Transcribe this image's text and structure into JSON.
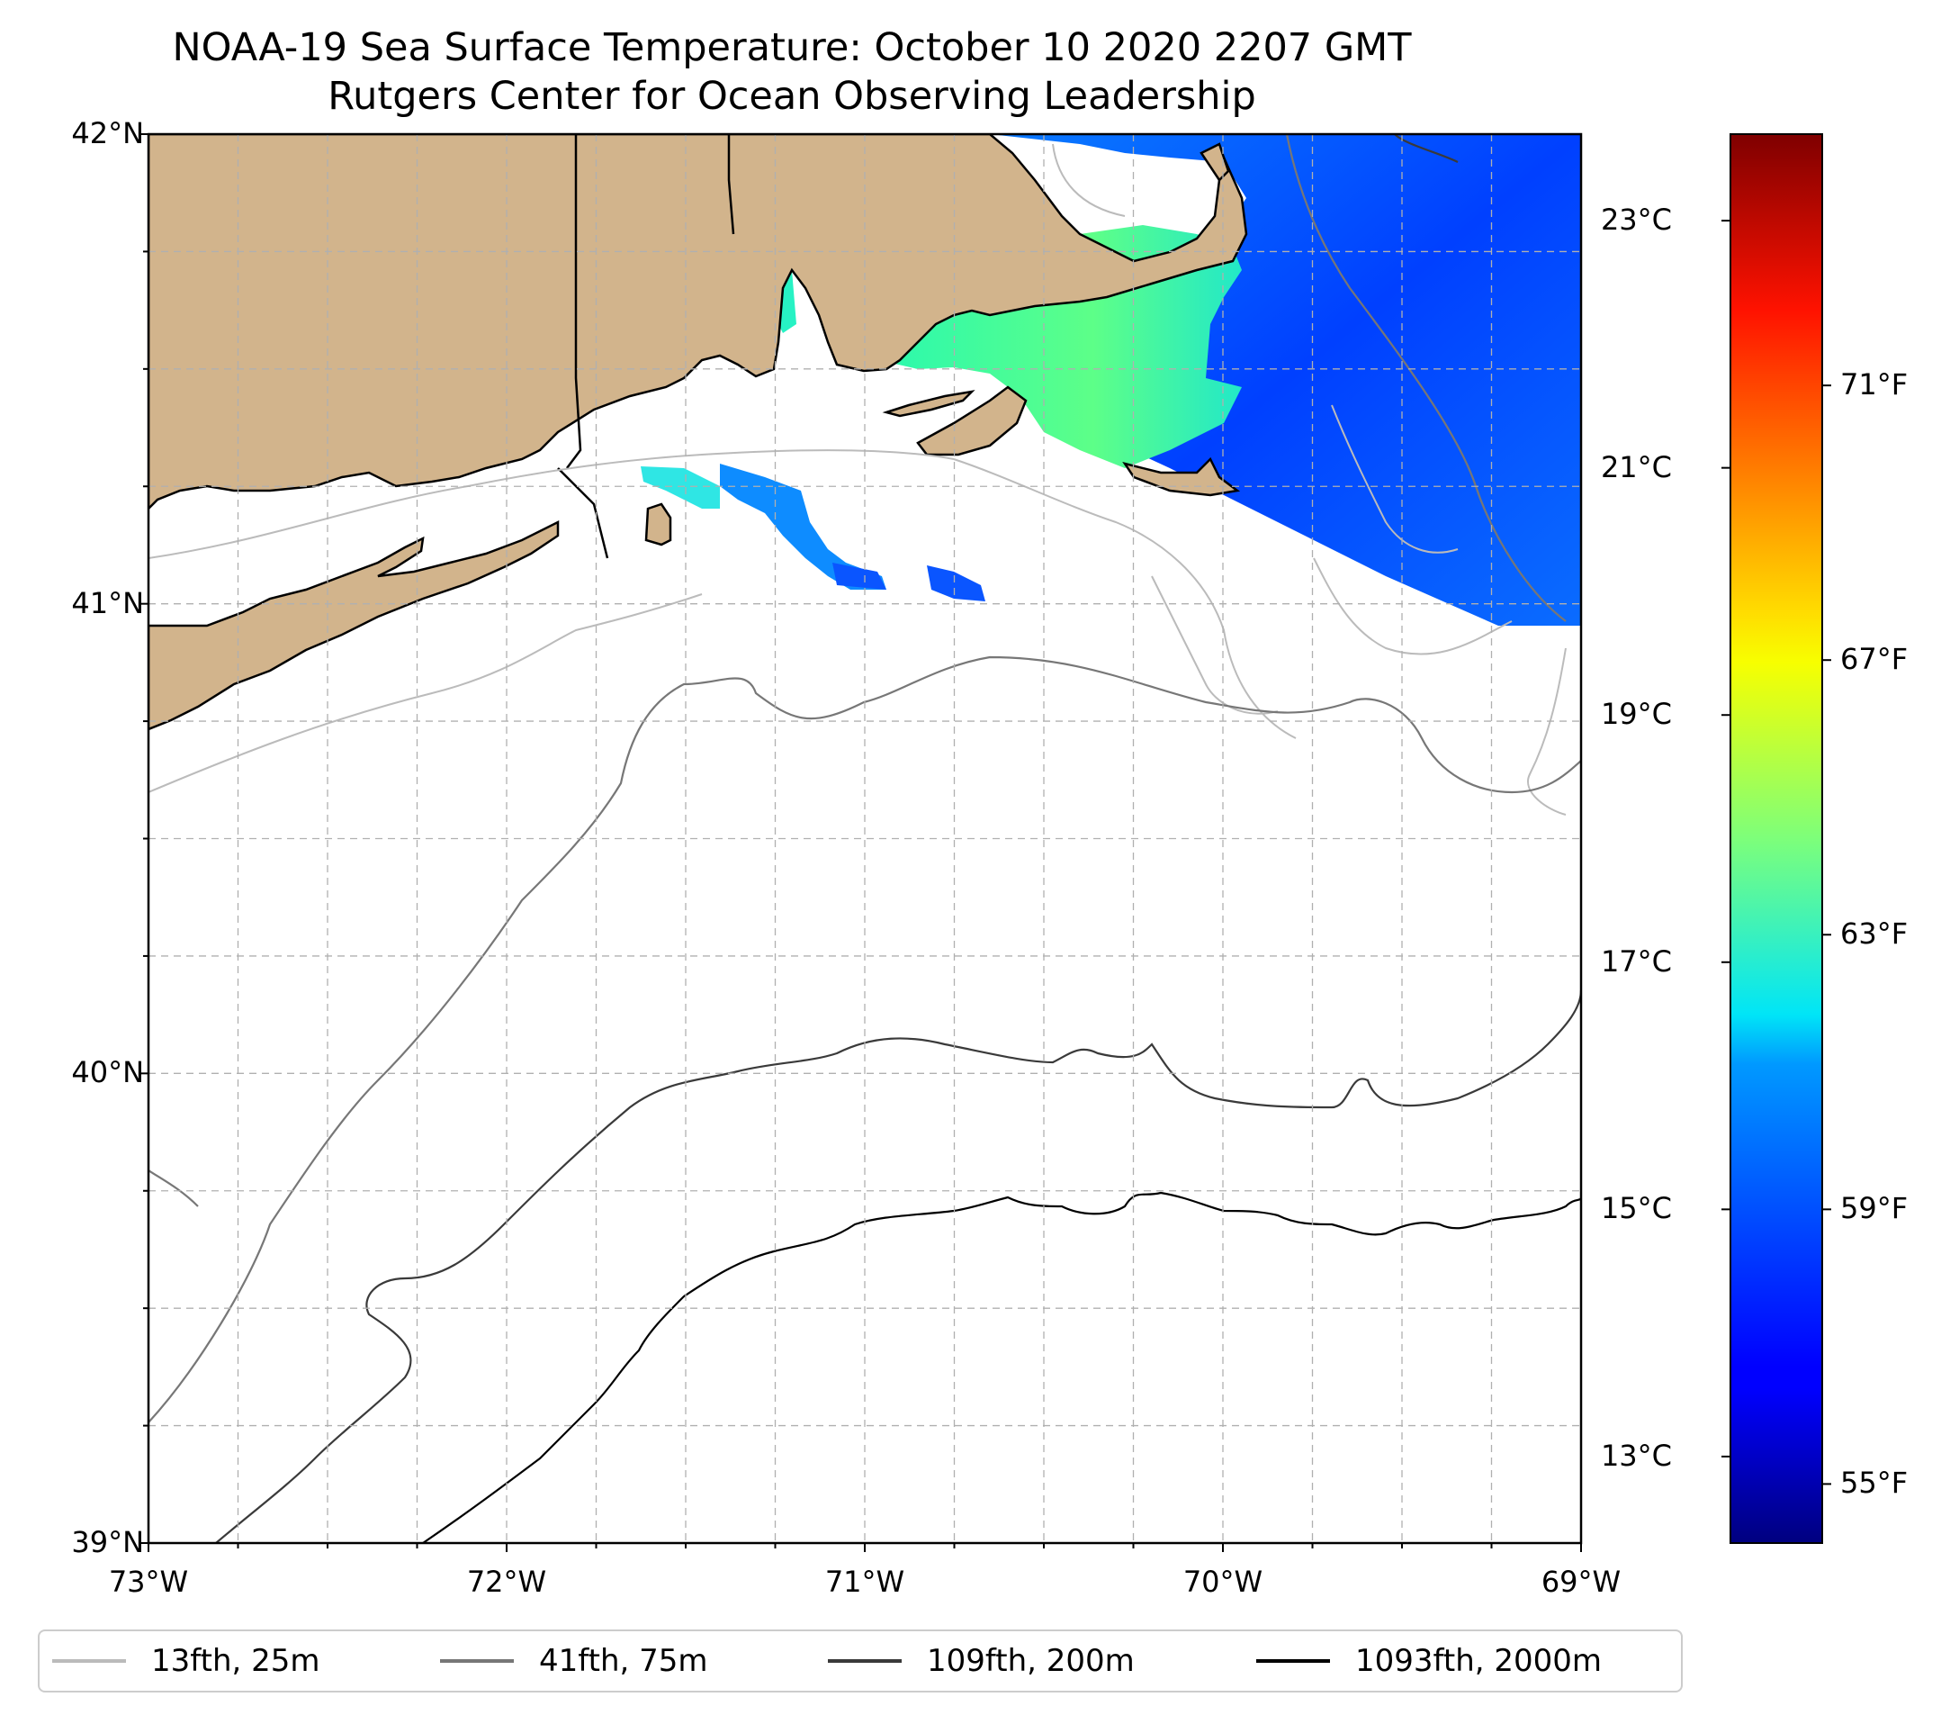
{
  "title": {
    "line1": "NOAA-19 Sea Surface Temperature: October 10 2020 2207 GMT",
    "line2": "Rutgers Center for Ocean Observing Leadership"
  },
  "map": {
    "lat_ticks": [
      {
        "value": 42,
        "label": "42°N"
      },
      {
        "value": 41,
        "label": "41°N"
      },
      {
        "value": 40,
        "label": "40°N"
      },
      {
        "value": 39,
        "label": "39°N"
      }
    ],
    "lon_ticks": [
      {
        "value": -73,
        "label": "73°W"
      },
      {
        "value": -72,
        "label": "72°W"
      },
      {
        "value": -71,
        "label": "71°W"
      },
      {
        "value": -70,
        "label": "70°W"
      },
      {
        "value": -69,
        "label": "69°W"
      }
    ],
    "lat_range": [
      39,
      42
    ],
    "lon_range": [
      -73,
      -69
    ],
    "gridlines": true,
    "land_color": "#d2b48c"
  },
  "colorbar": {
    "colormap": "jet",
    "celsius_ticks": [
      {
        "value": 23,
        "label": "23°C"
      },
      {
        "value": 21,
        "label": "21°C"
      },
      {
        "value": 19,
        "label": "19°C"
      },
      {
        "value": 17,
        "label": "17°C"
      },
      {
        "value": 15,
        "label": "15°C"
      },
      {
        "value": 13,
        "label": "13°C"
      }
    ],
    "fahrenheit_ticks": [
      {
        "value": 71,
        "label": "71°F"
      },
      {
        "value": 67,
        "label": "67°F"
      },
      {
        "value": 63,
        "label": "63°F"
      },
      {
        "value": 59,
        "label": "59°F"
      },
      {
        "value": 55,
        "label": "55°F"
      }
    ],
    "range_c": [
      12.3,
      23.7
    ]
  },
  "legend": {
    "placement": "bottom",
    "items": [
      {
        "label": "13fth, 25m",
        "color": "#bbbbbb"
      },
      {
        "label": "41fth, 75m",
        "color": "#777777"
      },
      {
        "label": "109fth, 200m",
        "color": "#3a3a3a"
      },
      {
        "label": "1093fth, 2000m",
        "color": "#000000"
      }
    ]
  }
}
